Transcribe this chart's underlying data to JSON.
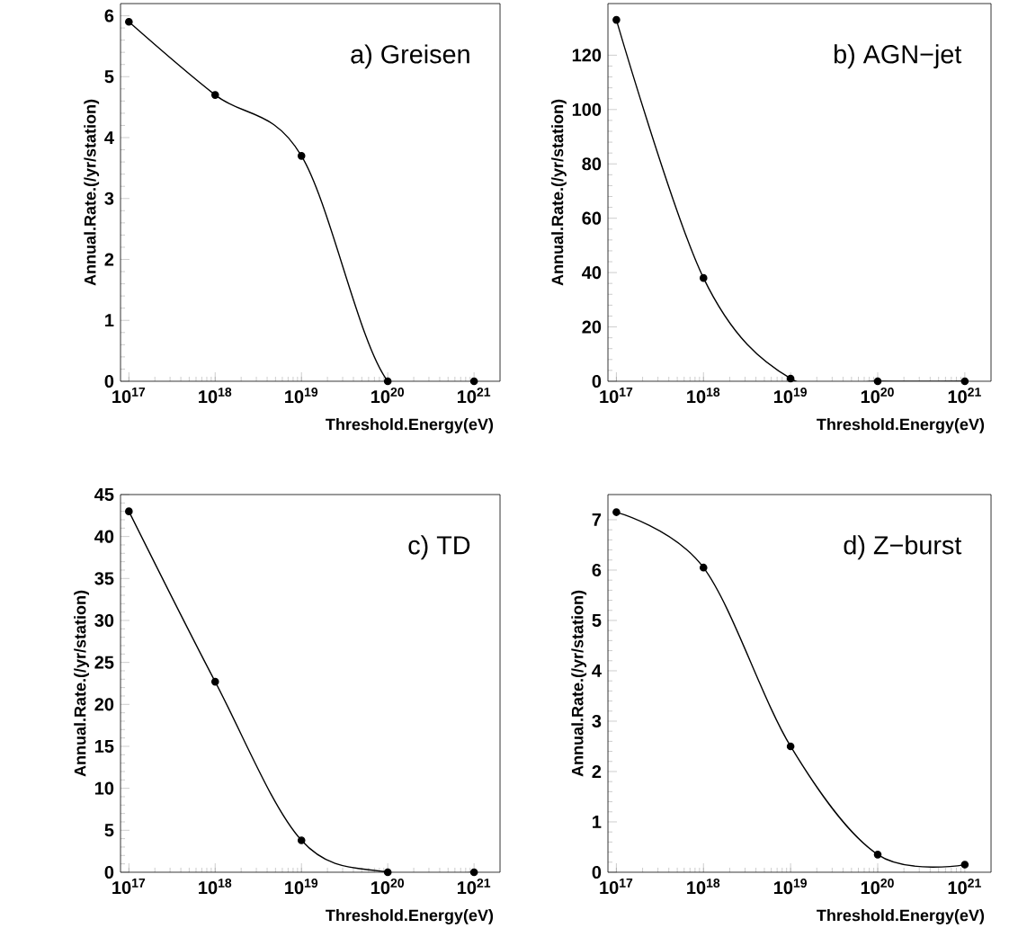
{
  "chart_data": [
    {
      "type": "line",
      "title": "a) Greisen",
      "xlabel": "Threshold.Energy(eV)",
      "ylabel": "Annual.Rate.(/yr/station)",
      "log": "x",
      "marker": "circle",
      "line_style": "solid",
      "x": [
        1e+17,
        1e+18,
        1e+19,
        1e+20,
        1e+21
      ],
      "series": [
        {
          "color": "#000000",
          "values": [
            5.9,
            4.7,
            3.7,
            0,
            0
          ]
        }
      ],
      "xlim": [
        8e+16,
        2e+21
      ],
      "ylim": [
        0,
        6.2
      ],
      "xticks": [
        {
          "value": 1e+17,
          "label": "10$^{17}$"
        },
        {
          "value": 1e+18,
          "label": "10$^{18}$"
        },
        {
          "value": 1e+19,
          "label": "10$^{19}$"
        },
        {
          "value": 1e+20,
          "label": "10$^{20}$"
        },
        {
          "value": 1e+21,
          "label": "10$^{21}$"
        }
      ],
      "yticks": [
        0,
        1,
        2,
        3,
        4,
        5,
        6
      ]
    },
    {
      "type": "line",
      "title": "b) AGN−jet",
      "xlabel": "Threshold.Energy(eV)",
      "ylabel": "Annual.Rate.(/yr/station)",
      "log": "x",
      "marker": "circle",
      "line_style": "solid",
      "x": [
        1e+17,
        1e+18,
        1e+19,
        1e+20,
        1e+21
      ],
      "series": [
        {
          "color": "#000000",
          "values": [
            133,
            38,
            1,
            0,
            0
          ]
        }
      ],
      "xlim": [
        8e+16,
        2e+21
      ],
      "ylim": [
        0,
        139
      ],
      "xticks": [
        {
          "value": 1e+17,
          "label": "10$^{17}$"
        },
        {
          "value": 1e+18,
          "label": "10$^{18}$"
        },
        {
          "value": 1e+19,
          "label": "10$^{19}$"
        },
        {
          "value": 1e+20,
          "label": "10$^{20}$"
        },
        {
          "value": 1e+21,
          "label": "10$^{21}$"
        }
      ],
      "yticks": [
        0,
        20,
        40,
        60,
        80,
        100,
        120
      ]
    },
    {
      "type": "line",
      "title": "c) TD",
      "xlabel": "Threshold.Energy(eV)",
      "ylabel": "Annual.Rate.(/yr/station)",
      "log": "x",
      "marker": "circle",
      "line_style": "solid",
      "x": [
        1e+17,
        1e+18,
        1e+19,
        1e+20,
        1e+21
      ],
      "series": [
        {
          "color": "#000000",
          "values": [
            43,
            22.7,
            3.8,
            0,
            0
          ]
        }
      ],
      "xlim": [
        8e+16,
        2e+21
      ],
      "ylim": [
        0,
        45
      ],
      "xticks": [
        {
          "value": 1e+17,
          "label": "10$^{17}$"
        },
        {
          "value": 1e+18,
          "label": "10$^{18}$"
        },
        {
          "value": 1e+19,
          "label": "10$^{19}$"
        },
        {
          "value": 1e+20,
          "label": "10$^{20}$"
        },
        {
          "value": 1e+21,
          "label": "10$^{21}$"
        }
      ],
      "yticks": [
        0,
        5,
        10,
        15,
        20,
        25,
        30,
        35,
        40,
        45
      ]
    },
    {
      "type": "line",
      "title": "d) Z−burst",
      "xlabel": "Threshold.Energy(eV)",
      "ylabel": "Annual.Rate.(/yr/station)",
      "log": "x",
      "marker": "circle",
      "line_style": "solid",
      "x": [
        1e+17,
        1e+18,
        1e+19,
        1e+20,
        1e+21
      ],
      "series": [
        {
          "color": "#000000",
          "values": [
            7.15,
            6.05,
            2.5,
            0.35,
            0.15
          ]
        }
      ],
      "xlim": [
        8e+16,
        2e+21
      ],
      "ylim": [
        0,
        7.5
      ],
      "xticks": [
        {
          "value": 1e+17,
          "label": "10$^{17}$"
        },
        {
          "value": 1e+18,
          "label": "10$^{18}$"
        },
        {
          "value": 1e+19,
          "label": "10$^{19}$"
        },
        {
          "value": 1e+20,
          "label": "10$^{20}$"
        },
        {
          "value": 1e+21,
          "label": "10$^{21}$"
        }
      ],
      "yticks": [
        0,
        1,
        2,
        3,
        4,
        5,
        6,
        7
      ]
    }
  ]
}
